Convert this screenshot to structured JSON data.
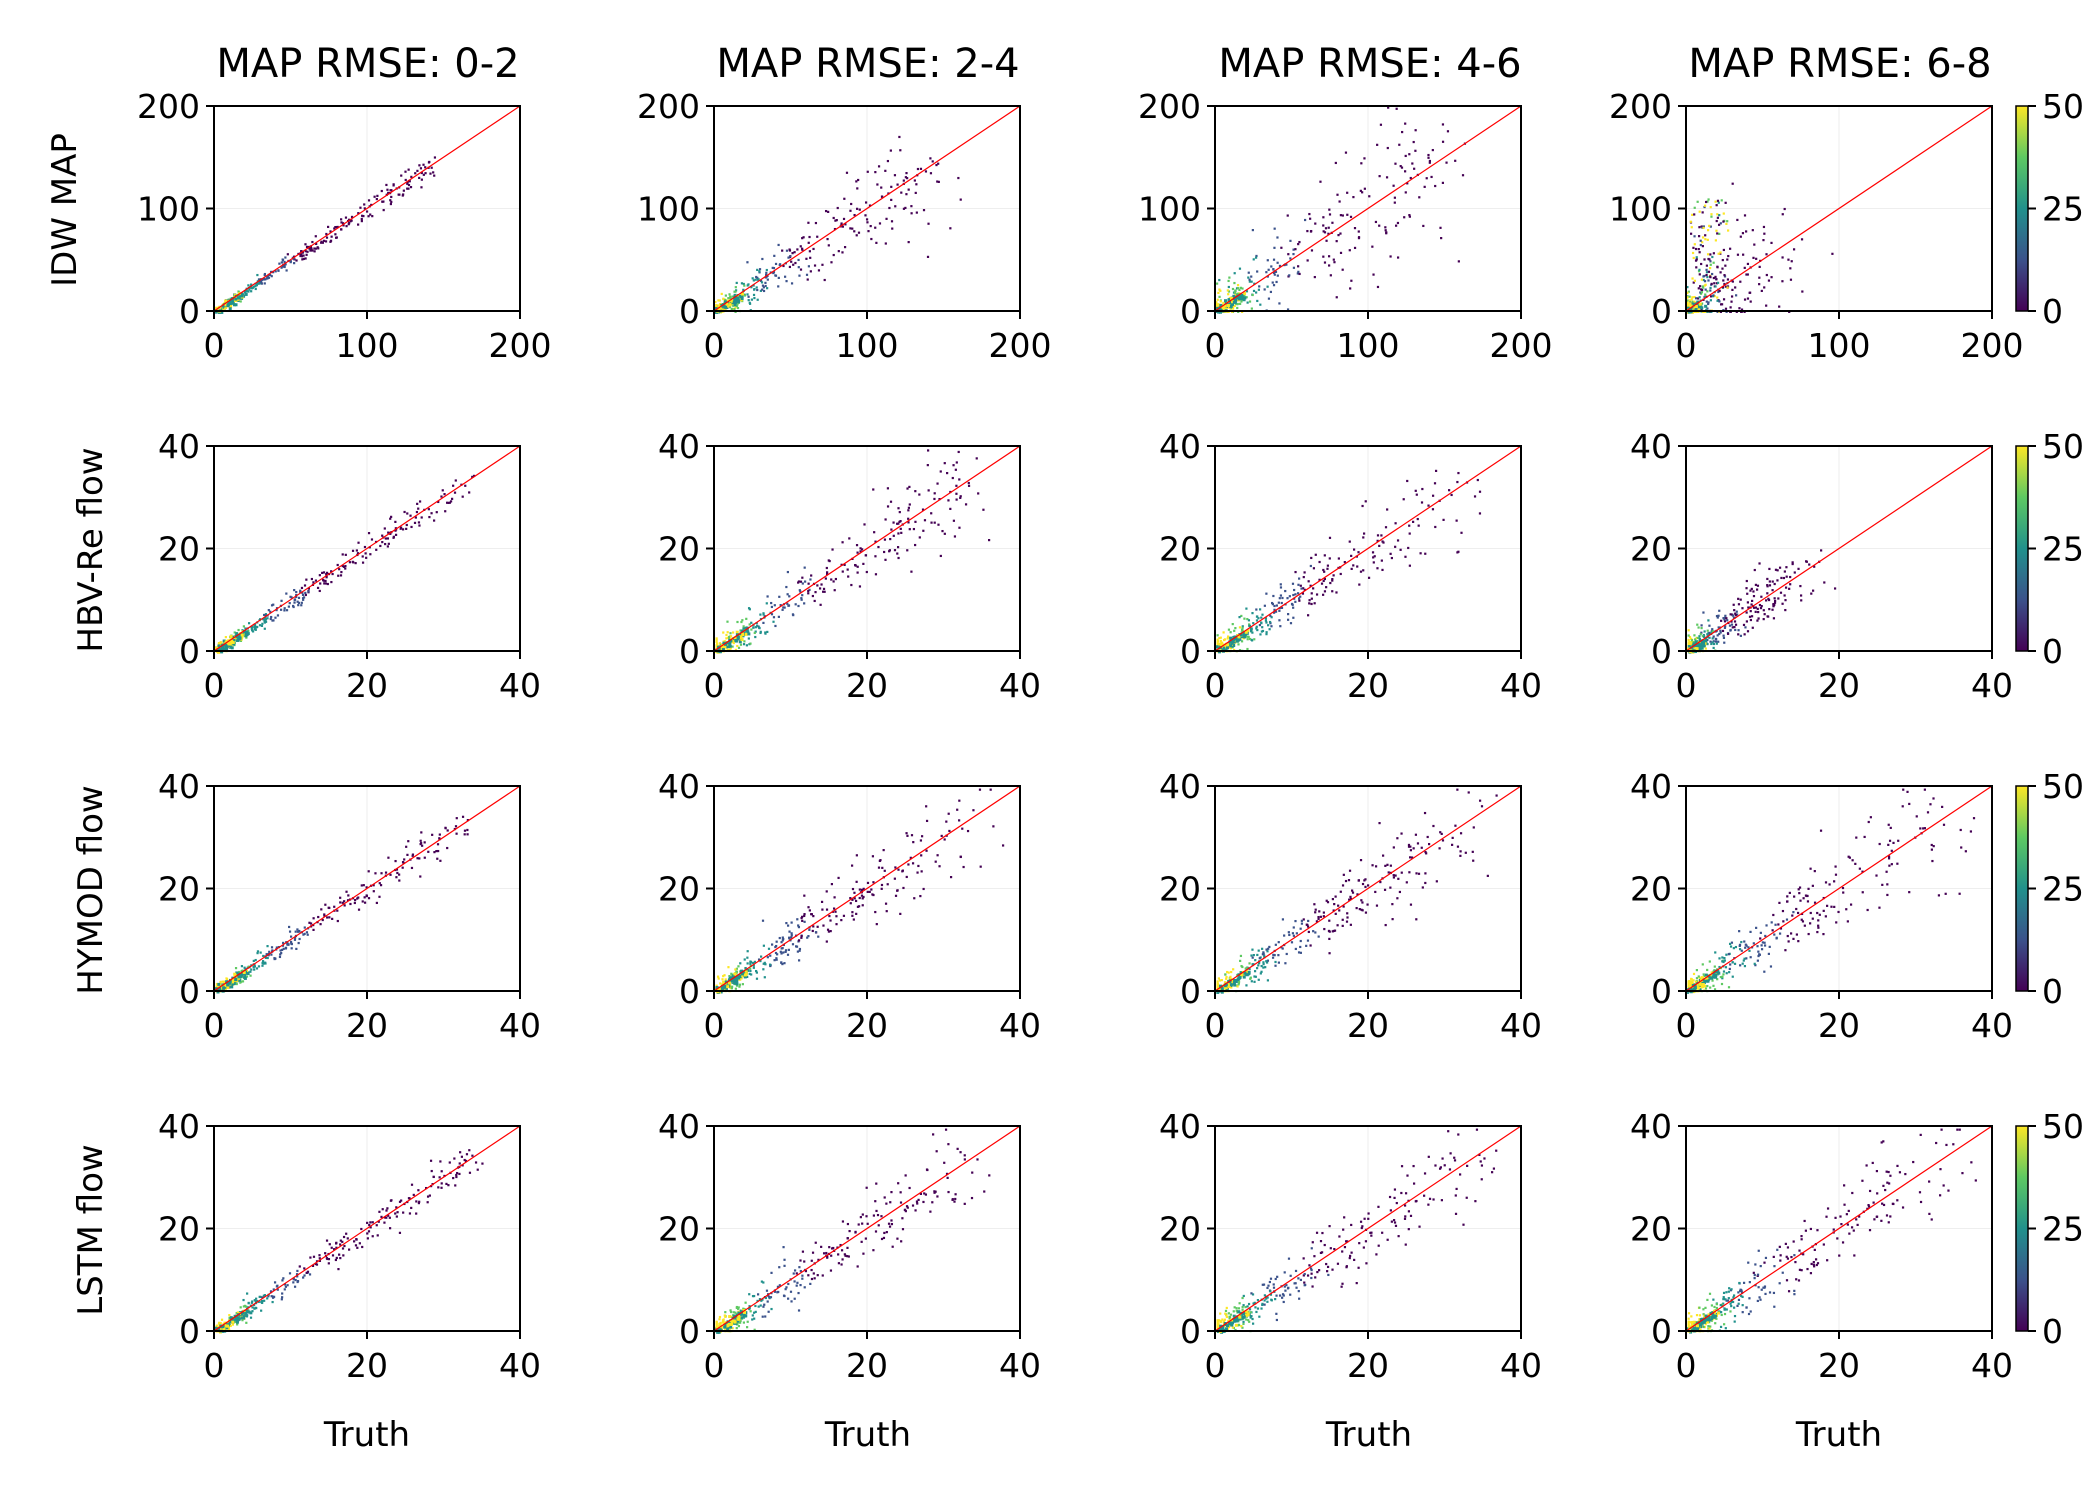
{
  "figure": {
    "column_titles": [
      "MAP RMSE: 0-2",
      "MAP RMSE: 2-4",
      "MAP RMSE: 4-6",
      "MAP RMSE: 6-8"
    ],
    "row_labels": [
      "IDW MAP",
      "HBV-Re flow",
      "HYMOD flow",
      "LSTM flow"
    ],
    "xlabel": "Truth",
    "colors": {
      "identity_line": "#ff0000",
      "colormap": [
        "#440154",
        "#3b528b",
        "#21918c",
        "#5ec962",
        "#fde725"
      ],
      "axis": "#000000",
      "grid": "#eeeeee"
    },
    "colorbar": {
      "range": [
        0,
        50
      ],
      "ticks": [
        0,
        25,
        50
      ]
    }
  },
  "chart_data": [
    {
      "type": "heatmap",
      "row": "IDW MAP",
      "column": "MAP RMSE: 0-2",
      "xlim": [
        0,
        200
      ],
      "ylim": [
        0,
        200
      ],
      "xticks": [
        0,
        100,
        200
      ],
      "yticks": [
        0,
        100,
        200
      ],
      "reference_line": "y = x",
      "spread": 0.1,
      "max_extent": 145
    },
    {
      "type": "heatmap",
      "row": "IDW MAP",
      "column": "MAP RMSE: 2-4",
      "xlim": [
        0,
        200
      ],
      "ylim": [
        0,
        200
      ],
      "xticks": [
        0,
        100,
        200
      ],
      "yticks": [
        0,
        100,
        200
      ],
      "reference_line": "y = x",
      "spread": 0.45,
      "max_extent": 140
    },
    {
      "type": "heatmap",
      "row": "IDW MAP",
      "column": "MAP RMSE: 4-6",
      "xlim": [
        0,
        200
      ],
      "ylim": [
        0,
        200
      ],
      "xticks": [
        0,
        100,
        200
      ],
      "yticks": [
        0,
        100,
        200
      ],
      "reference_line": "y = x",
      "spread": 0.7,
      "max_extent": 145
    },
    {
      "type": "heatmap",
      "row": "IDW MAP",
      "column": "MAP RMSE: 6-8",
      "xlim": [
        0,
        200
      ],
      "ylim": [
        0,
        200
      ],
      "xticks": [
        0,
        100,
        200
      ],
      "yticks": [
        0,
        100,
        200
      ],
      "reference_line": "y = x",
      "spread": 1.1,
      "max_extent": 60,
      "colorbar": true
    },
    {
      "type": "heatmap",
      "row": "HBV-Re flow",
      "column": "MAP RMSE: 0-2",
      "xlim": [
        0,
        40
      ],
      "ylim": [
        0,
        40
      ],
      "xticks": [
        0,
        20,
        40
      ],
      "yticks": [
        0,
        20,
        40
      ],
      "reference_line": "y = x",
      "spread": 0.08,
      "max_extent": 34
    },
    {
      "type": "heatmap",
      "row": "HBV-Re flow",
      "column": "MAP RMSE: 2-4",
      "xlim": [
        0,
        40
      ],
      "ylim": [
        0,
        40
      ],
      "xticks": [
        0,
        20,
        40
      ],
      "yticks": [
        0,
        20,
        40
      ],
      "reference_line": "y = x",
      "spread": 0.3,
      "max_extent": 34
    },
    {
      "type": "heatmap",
      "row": "HBV-Re flow",
      "column": "MAP RMSE: 4-6",
      "xlim": [
        0,
        40
      ],
      "ylim": [
        0,
        40
      ],
      "xticks": [
        0,
        20,
        40
      ],
      "yticks": [
        0,
        20,
        40
      ],
      "reference_line": "y = x",
      "spread": 0.35,
      "max_extent": 34
    },
    {
      "type": "heatmap",
      "row": "HBV-Re flow",
      "column": "MAP RMSE: 6-8",
      "xlim": [
        0,
        40
      ],
      "ylim": [
        0,
        40
      ],
      "xticks": [
        0,
        20,
        40
      ],
      "yticks": [
        0,
        20,
        40
      ],
      "reference_line": "y = x",
      "spread": 0.45,
      "max_extent": 16,
      "colorbar": true
    },
    {
      "type": "heatmap",
      "row": "HYMOD flow",
      "column": "MAP RMSE: 0-2",
      "xlim": [
        0,
        40
      ],
      "ylim": [
        0,
        40
      ],
      "xticks": [
        0,
        20,
        40
      ],
      "yticks": [
        0,
        20,
        40
      ],
      "reference_line": "y = x",
      "spread": 0.1,
      "max_extent": 34
    },
    {
      "type": "heatmap",
      "row": "HYMOD flow",
      "column": "MAP RMSE: 2-4",
      "xlim": [
        0,
        40
      ],
      "ylim": [
        0,
        40
      ],
      "xticks": [
        0,
        20,
        40
      ],
      "yticks": [
        0,
        20,
        40
      ],
      "reference_line": "y = x",
      "spread": 0.3,
      "max_extent": 34
    },
    {
      "type": "heatmap",
      "row": "HYMOD flow",
      "column": "MAP RMSE: 4-6",
      "xlim": [
        0,
        40
      ],
      "ylim": [
        0,
        40
      ],
      "xticks": [
        0,
        20,
        40
      ],
      "yticks": [
        0,
        20,
        40
      ],
      "reference_line": "y = x",
      "spread": 0.35,
      "max_extent": 34
    },
    {
      "type": "heatmap",
      "row": "HYMOD flow",
      "column": "MAP RMSE: 6-8",
      "xlim": [
        0,
        40
      ],
      "ylim": [
        0,
        40
      ],
      "xticks": [
        0,
        20,
        40
      ],
      "yticks": [
        0,
        20,
        40
      ],
      "reference_line": "y = x",
      "spread": 0.4,
      "max_extent": 34,
      "colorbar": true
    },
    {
      "type": "heatmap",
      "row": "LSTM flow",
      "column": "MAP RMSE: 0-2",
      "xlim": [
        0,
        40
      ],
      "ylim": [
        0,
        40
      ],
      "xticks": [
        0,
        20,
        40
      ],
      "yticks": [
        0,
        20,
        40
      ],
      "reference_line": "y = x",
      "spread": 0.1,
      "max_extent": 34
    },
    {
      "type": "heatmap",
      "row": "LSTM flow",
      "column": "MAP RMSE: 2-4",
      "xlim": [
        0,
        40
      ],
      "ylim": [
        0,
        40
      ],
      "xticks": [
        0,
        20,
        40
      ],
      "yticks": [
        0,
        20,
        40
      ],
      "reference_line": "y = x",
      "spread": 0.3,
      "max_extent": 34
    },
    {
      "type": "heatmap",
      "row": "LSTM flow",
      "column": "MAP RMSE: 4-6",
      "xlim": [
        0,
        40
      ],
      "ylim": [
        0,
        40
      ],
      "xticks": [
        0,
        20,
        40
      ],
      "yticks": [
        0,
        20,
        40
      ],
      "reference_line": "y = x",
      "spread": 0.35,
      "max_extent": 34
    },
    {
      "type": "heatmap",
      "row": "LSTM flow",
      "column": "MAP RMSE: 6-8",
      "xlim": [
        0,
        40
      ],
      "ylim": [
        0,
        40
      ],
      "xticks": [
        0,
        20,
        40
      ],
      "yticks": [
        0,
        20,
        40
      ],
      "reference_line": "y = x",
      "spread": 0.4,
      "max_extent": 34,
      "colorbar": true
    }
  ]
}
